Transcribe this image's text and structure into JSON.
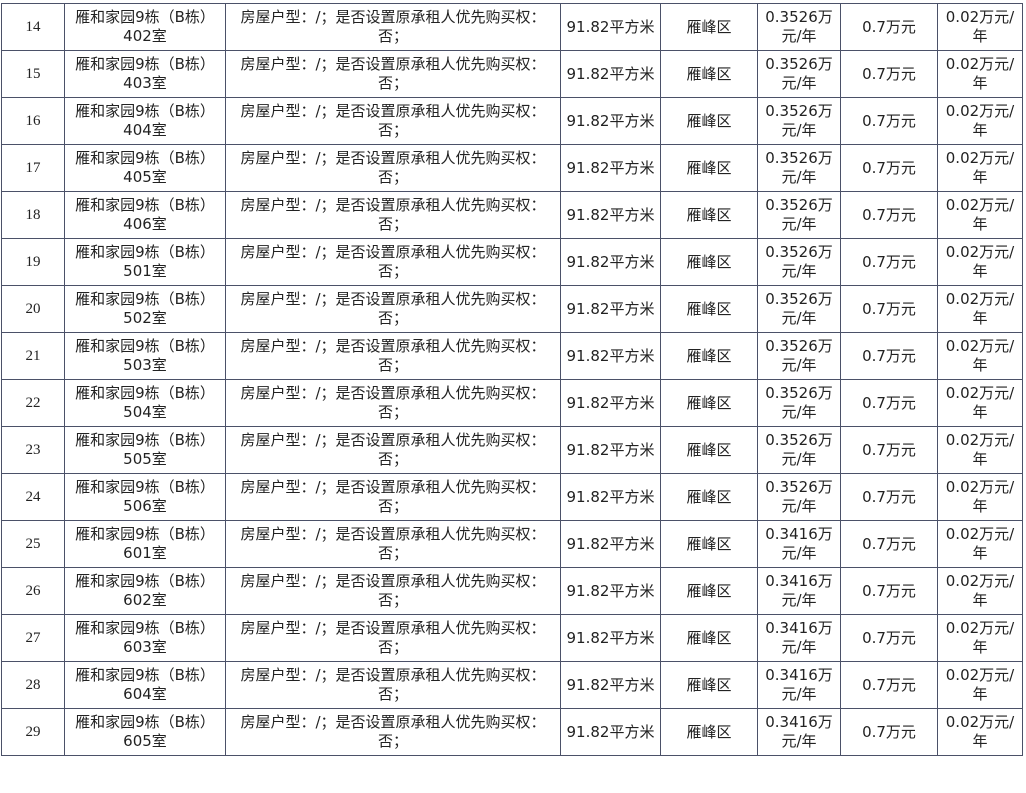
{
  "rows": [
    {
      "no": "14",
      "name": "雁和家园9栋（B栋）402室",
      "desc": "房屋户型：/；是否设置原承租人优先购买权：否；",
      "area": "91.82平方米",
      "district": "雁峰区",
      "rent": "0.3526万元/年",
      "deposit": "0.7万元",
      "increment": "0.02万元/年"
    },
    {
      "no": "15",
      "name": "雁和家园9栋（B栋）403室",
      "desc": "房屋户型：/；是否设置原承租人优先购买权：否；",
      "area": "91.82平方米",
      "district": "雁峰区",
      "rent": "0.3526万元/年",
      "deposit": "0.7万元",
      "increment": "0.02万元/年"
    },
    {
      "no": "16",
      "name": "雁和家园9栋（B栋）404室",
      "desc": "房屋户型：/；是否设置原承租人优先购买权：否；",
      "area": "91.82平方米",
      "district": "雁峰区",
      "rent": "0.3526万元/年",
      "deposit": "0.7万元",
      "increment": "0.02万元/年"
    },
    {
      "no": "17",
      "name": "雁和家园9栋（B栋）405室",
      "desc": "房屋户型：/；是否设置原承租人优先购买权：否；",
      "area": "91.82平方米",
      "district": "雁峰区",
      "rent": "0.3526万元/年",
      "deposit": "0.7万元",
      "increment": "0.02万元/年"
    },
    {
      "no": "18",
      "name": "雁和家园9栋（B栋）406室",
      "desc": "房屋户型：/；是否设置原承租人优先购买权：否；",
      "area": "91.82平方米",
      "district": "雁峰区",
      "rent": "0.3526万元/年",
      "deposit": "0.7万元",
      "increment": "0.02万元/年"
    },
    {
      "no": "19",
      "name": "雁和家园9栋（B栋）501室",
      "desc": "房屋户型：/；是否设置原承租人优先购买权：否；",
      "area": "91.82平方米",
      "district": "雁峰区",
      "rent": "0.3526万元/年",
      "deposit": "0.7万元",
      "increment": "0.02万元/年"
    },
    {
      "no": "20",
      "name": "雁和家园9栋（B栋）502室",
      "desc": "房屋户型：/；是否设置原承租人优先购买权：否；",
      "area": "91.82平方米",
      "district": "雁峰区",
      "rent": "0.3526万元/年",
      "deposit": "0.7万元",
      "increment": "0.02万元/年"
    },
    {
      "no": "21",
      "name": "雁和家园9栋（B栋）503室",
      "desc": "房屋户型：/；是否设置原承租人优先购买权：否；",
      "area": "91.82平方米",
      "district": "雁峰区",
      "rent": "0.3526万元/年",
      "deposit": "0.7万元",
      "increment": "0.02万元/年"
    },
    {
      "no": "22",
      "name": "雁和家园9栋（B栋）504室",
      "desc": "房屋户型：/；是否设置原承租人优先购买权：否；",
      "area": "91.82平方米",
      "district": "雁峰区",
      "rent": "0.3526万元/年",
      "deposit": "0.7万元",
      "increment": "0.02万元/年"
    },
    {
      "no": "23",
      "name": "雁和家园9栋（B栋）505室",
      "desc": "房屋户型：/；是否设置原承租人优先购买权：否；",
      "area": "91.82平方米",
      "district": "雁峰区",
      "rent": "0.3526万元/年",
      "deposit": "0.7万元",
      "increment": "0.02万元/年"
    },
    {
      "no": "24",
      "name": "雁和家园9栋（B栋）506室",
      "desc": "房屋户型：/；是否设置原承租人优先购买权：否；",
      "area": "91.82平方米",
      "district": "雁峰区",
      "rent": "0.3526万元/年",
      "deposit": "0.7万元",
      "increment": "0.02万元/年"
    },
    {
      "no": "25",
      "name": "雁和家园9栋（B栋）601室",
      "desc": "房屋户型：/；是否设置原承租人优先购买权：否；",
      "area": "91.82平方米",
      "district": "雁峰区",
      "rent": "0.3416万元/年",
      "deposit": "0.7万元",
      "increment": "0.02万元/年"
    },
    {
      "no": "26",
      "name": "雁和家园9栋（B栋）602室",
      "desc": "房屋户型：/；是否设置原承租人优先购买权：否；",
      "area": "91.82平方米",
      "district": "雁峰区",
      "rent": "0.3416万元/年",
      "deposit": "0.7万元",
      "increment": "0.02万元/年"
    },
    {
      "no": "27",
      "name": "雁和家园9栋（B栋）603室",
      "desc": "房屋户型：/；是否设置原承租人优先购买权：否；",
      "area": "91.82平方米",
      "district": "雁峰区",
      "rent": "0.3416万元/年",
      "deposit": "0.7万元",
      "increment": "0.02万元/年"
    },
    {
      "no": "28",
      "name": "雁和家园9栋（B栋）604室",
      "desc": "房屋户型：/；是否设置原承租人优先购买权：否；",
      "area": "91.82平方米",
      "district": "雁峰区",
      "rent": "0.3416万元/年",
      "deposit": "0.7万元",
      "increment": "0.02万元/年"
    },
    {
      "no": "29",
      "name": "雁和家园9栋（B栋）605室",
      "desc": "房屋户型：/；是否设置原承租人优先购买权：否；",
      "area": "91.82平方米",
      "district": "雁峰区",
      "rent": "0.3416万元/年",
      "deposit": "0.7万元",
      "increment": "0.02万元/年"
    }
  ]
}
